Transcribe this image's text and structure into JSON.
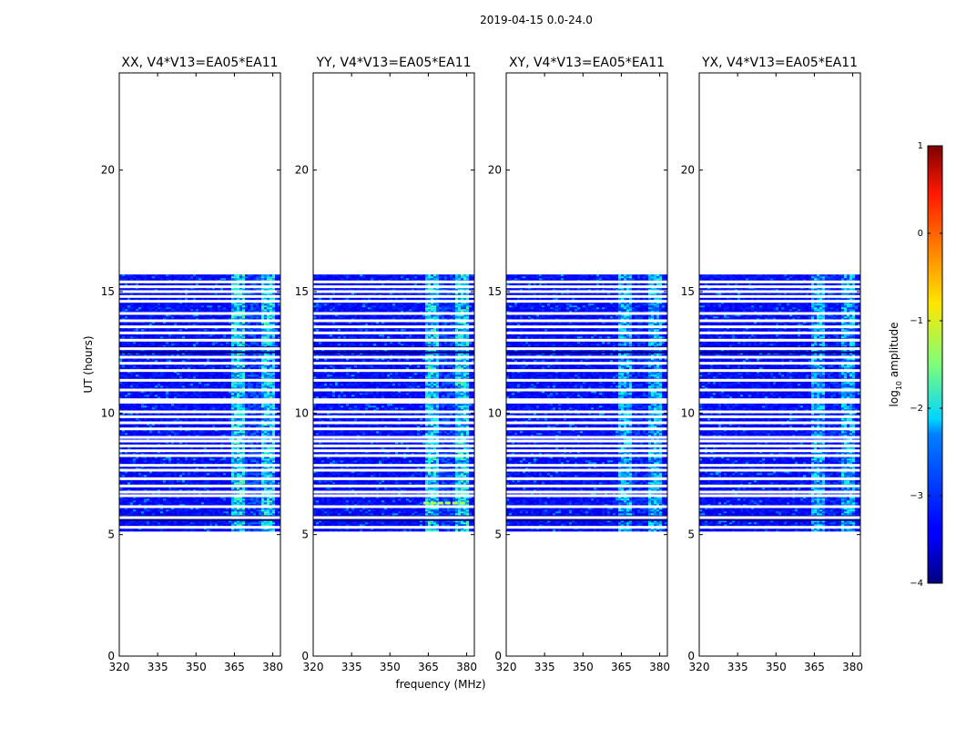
{
  "figure": {
    "suptitle": "2019-04-15 0.0-24.0",
    "xlabel": "frequency (MHz)",
    "ylabel": "UT (hours)"
  },
  "colorbar": {
    "label_main": "log",
    "label_sub": "10",
    "label_tail": " amplitude",
    "range": [
      -4,
      1
    ],
    "ticks": [
      1,
      0,
      -1,
      -2,
      -3,
      -4
    ],
    "tick_labels": [
      "1",
      "0",
      "−1",
      "−2",
      "−3",
      "−4"
    ],
    "colormap": "jet"
  },
  "chart_data": {
    "type": "heatmap",
    "panels": [
      {
        "title": "XX, V4*V13=EA05*EA11",
        "polarization": "XX"
      },
      {
        "title": "YY, V4*V13=EA05*EA11",
        "polarization": "YY"
      },
      {
        "title": "XY, V4*V13=EA05*EA11",
        "polarization": "XY"
      },
      {
        "title": "YX, V4*V13=EA05*EA11",
        "polarization": "YX"
      }
    ],
    "xlim": [
      320,
      383
    ],
    "ylim": [
      0,
      24
    ],
    "xticks": [
      320,
      335,
      350,
      365,
      380
    ],
    "xtick_labels": [
      "320",
      "335",
      "350",
      "365",
      "380"
    ],
    "yticks": [
      0,
      5,
      10,
      15,
      20
    ],
    "ytick_labels": [
      "0",
      "5",
      "10",
      "15",
      "20"
    ],
    "data_time_range": [
      5.15,
      15.7
    ],
    "background_log_amplitude": -3.4,
    "bright_band_mhz": [
      363,
      380
    ],
    "bright_band_log_amplitude": -2.4,
    "gap_times_hours": [
      5.3,
      5.7,
      6.15,
      6.6,
      6.75,
      7.0,
      7.3,
      7.65,
      7.85,
      8.25,
      8.45,
      8.65,
      8.85,
      9.0,
      9.35,
      9.6,
      9.85,
      10.05,
      10.45,
      10.55,
      10.95,
      11.35,
      11.75,
      12.05,
      12.3,
      12.65,
      13.0,
      13.3,
      13.55,
      13.8,
      14.1,
      14.6,
      14.8,
      15.0,
      15.2,
      15.4
    ],
    "dark_rows_hours": [
      5.6,
      5.75,
      12.5,
      12.7
    ]
  }
}
